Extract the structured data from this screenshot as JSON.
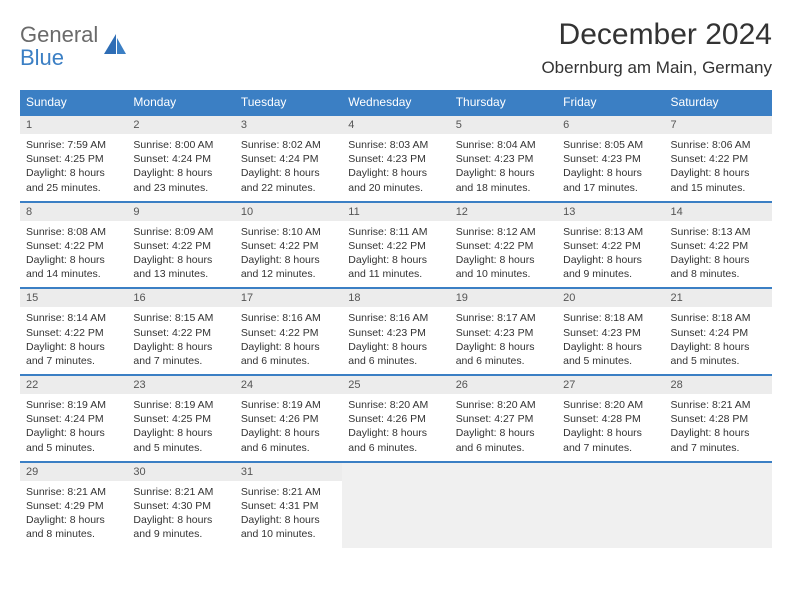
{
  "logo": {
    "general": "General",
    "blue": "Blue"
  },
  "title": "December 2024",
  "location": "Obernburg am Main, Germany",
  "colors": {
    "header_bg": "#3b7fc4",
    "header_text": "#ffffff",
    "daynum_bg": "#ececec",
    "border": "#3b7fc4",
    "text": "#333333",
    "logo_gray": "#6a6a6a",
    "logo_blue": "#3b7fc4",
    "empty_bg": "#f0f0f0"
  },
  "weekdays": [
    "Sunday",
    "Monday",
    "Tuesday",
    "Wednesday",
    "Thursday",
    "Friday",
    "Saturday"
  ],
  "weeks": [
    [
      {
        "n": "1",
        "sr": "Sunrise: 7:59 AM",
        "ss": "Sunset: 4:25 PM",
        "d1": "Daylight: 8 hours",
        "d2": "and 25 minutes."
      },
      {
        "n": "2",
        "sr": "Sunrise: 8:00 AM",
        "ss": "Sunset: 4:24 PM",
        "d1": "Daylight: 8 hours",
        "d2": "and 23 minutes."
      },
      {
        "n": "3",
        "sr": "Sunrise: 8:02 AM",
        "ss": "Sunset: 4:24 PM",
        "d1": "Daylight: 8 hours",
        "d2": "and 22 minutes."
      },
      {
        "n": "4",
        "sr": "Sunrise: 8:03 AM",
        "ss": "Sunset: 4:23 PM",
        "d1": "Daylight: 8 hours",
        "d2": "and 20 minutes."
      },
      {
        "n": "5",
        "sr": "Sunrise: 8:04 AM",
        "ss": "Sunset: 4:23 PM",
        "d1": "Daylight: 8 hours",
        "d2": "and 18 minutes."
      },
      {
        "n": "6",
        "sr": "Sunrise: 8:05 AM",
        "ss": "Sunset: 4:23 PM",
        "d1": "Daylight: 8 hours",
        "d2": "and 17 minutes."
      },
      {
        "n": "7",
        "sr": "Sunrise: 8:06 AM",
        "ss": "Sunset: 4:22 PM",
        "d1": "Daylight: 8 hours",
        "d2": "and 15 minutes."
      }
    ],
    [
      {
        "n": "8",
        "sr": "Sunrise: 8:08 AM",
        "ss": "Sunset: 4:22 PM",
        "d1": "Daylight: 8 hours",
        "d2": "and 14 minutes."
      },
      {
        "n": "9",
        "sr": "Sunrise: 8:09 AM",
        "ss": "Sunset: 4:22 PM",
        "d1": "Daylight: 8 hours",
        "d2": "and 13 minutes."
      },
      {
        "n": "10",
        "sr": "Sunrise: 8:10 AM",
        "ss": "Sunset: 4:22 PM",
        "d1": "Daylight: 8 hours",
        "d2": "and 12 minutes."
      },
      {
        "n": "11",
        "sr": "Sunrise: 8:11 AM",
        "ss": "Sunset: 4:22 PM",
        "d1": "Daylight: 8 hours",
        "d2": "and 11 minutes."
      },
      {
        "n": "12",
        "sr": "Sunrise: 8:12 AM",
        "ss": "Sunset: 4:22 PM",
        "d1": "Daylight: 8 hours",
        "d2": "and 10 minutes."
      },
      {
        "n": "13",
        "sr": "Sunrise: 8:13 AM",
        "ss": "Sunset: 4:22 PM",
        "d1": "Daylight: 8 hours",
        "d2": "and 9 minutes."
      },
      {
        "n": "14",
        "sr": "Sunrise: 8:13 AM",
        "ss": "Sunset: 4:22 PM",
        "d1": "Daylight: 8 hours",
        "d2": "and 8 minutes."
      }
    ],
    [
      {
        "n": "15",
        "sr": "Sunrise: 8:14 AM",
        "ss": "Sunset: 4:22 PM",
        "d1": "Daylight: 8 hours",
        "d2": "and 7 minutes."
      },
      {
        "n": "16",
        "sr": "Sunrise: 8:15 AM",
        "ss": "Sunset: 4:22 PM",
        "d1": "Daylight: 8 hours",
        "d2": "and 7 minutes."
      },
      {
        "n": "17",
        "sr": "Sunrise: 8:16 AM",
        "ss": "Sunset: 4:22 PM",
        "d1": "Daylight: 8 hours",
        "d2": "and 6 minutes."
      },
      {
        "n": "18",
        "sr": "Sunrise: 8:16 AM",
        "ss": "Sunset: 4:23 PM",
        "d1": "Daylight: 8 hours",
        "d2": "and 6 minutes."
      },
      {
        "n": "19",
        "sr": "Sunrise: 8:17 AM",
        "ss": "Sunset: 4:23 PM",
        "d1": "Daylight: 8 hours",
        "d2": "and 6 minutes."
      },
      {
        "n": "20",
        "sr": "Sunrise: 8:18 AM",
        "ss": "Sunset: 4:23 PM",
        "d1": "Daylight: 8 hours",
        "d2": "and 5 minutes."
      },
      {
        "n": "21",
        "sr": "Sunrise: 8:18 AM",
        "ss": "Sunset: 4:24 PM",
        "d1": "Daylight: 8 hours",
        "d2": "and 5 minutes."
      }
    ],
    [
      {
        "n": "22",
        "sr": "Sunrise: 8:19 AM",
        "ss": "Sunset: 4:24 PM",
        "d1": "Daylight: 8 hours",
        "d2": "and 5 minutes."
      },
      {
        "n": "23",
        "sr": "Sunrise: 8:19 AM",
        "ss": "Sunset: 4:25 PM",
        "d1": "Daylight: 8 hours",
        "d2": "and 5 minutes."
      },
      {
        "n": "24",
        "sr": "Sunrise: 8:19 AM",
        "ss": "Sunset: 4:26 PM",
        "d1": "Daylight: 8 hours",
        "d2": "and 6 minutes."
      },
      {
        "n": "25",
        "sr": "Sunrise: 8:20 AM",
        "ss": "Sunset: 4:26 PM",
        "d1": "Daylight: 8 hours",
        "d2": "and 6 minutes."
      },
      {
        "n": "26",
        "sr": "Sunrise: 8:20 AM",
        "ss": "Sunset: 4:27 PM",
        "d1": "Daylight: 8 hours",
        "d2": "and 6 minutes."
      },
      {
        "n": "27",
        "sr": "Sunrise: 8:20 AM",
        "ss": "Sunset: 4:28 PM",
        "d1": "Daylight: 8 hours",
        "d2": "and 7 minutes."
      },
      {
        "n": "28",
        "sr": "Sunrise: 8:21 AM",
        "ss": "Sunset: 4:28 PM",
        "d1": "Daylight: 8 hours",
        "d2": "and 7 minutes."
      }
    ],
    [
      {
        "n": "29",
        "sr": "Sunrise: 8:21 AM",
        "ss": "Sunset: 4:29 PM",
        "d1": "Daylight: 8 hours",
        "d2": "and 8 minutes."
      },
      {
        "n": "30",
        "sr": "Sunrise: 8:21 AM",
        "ss": "Sunset: 4:30 PM",
        "d1": "Daylight: 8 hours",
        "d2": "and 9 minutes."
      },
      {
        "n": "31",
        "sr": "Sunrise: 8:21 AM",
        "ss": "Sunset: 4:31 PM",
        "d1": "Daylight: 8 hours",
        "d2": "and 10 minutes."
      },
      null,
      null,
      null,
      null
    ]
  ]
}
